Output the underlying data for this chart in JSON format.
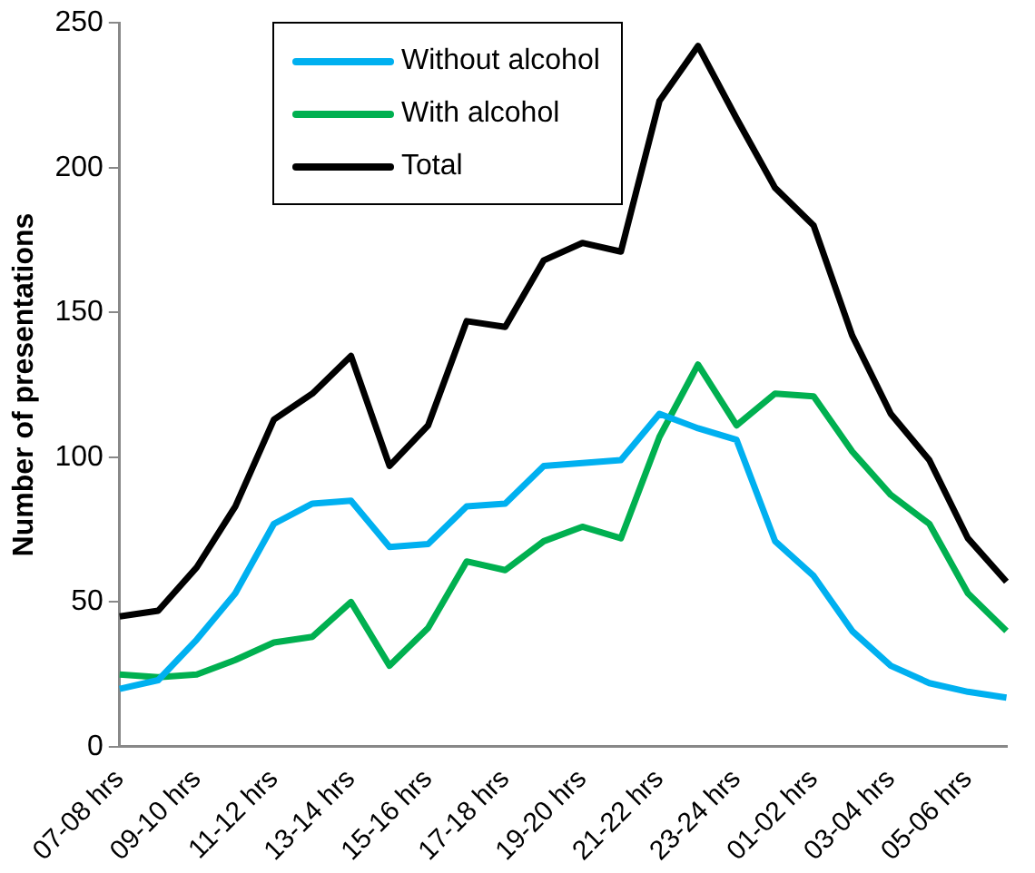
{
  "chart_data": {
    "type": "line",
    "ylabel": "Number of presentations",
    "categories": [
      "07-08 hrs",
      null,
      "09-10 hrs",
      null,
      "11-12 hrs",
      null,
      "13-14 hrs",
      null,
      "15-16 hrs",
      null,
      "17-18 hrs",
      null,
      "19-20 hrs",
      null,
      "21-22 hrs",
      null,
      "23-24 hrs",
      null,
      "01-02 hrs",
      null,
      "03-04 hrs",
      null,
      "05-06 hrs",
      null
    ],
    "series": [
      {
        "name": "Without alcohol",
        "color": "#00b0f0",
        "values": [
          20,
          23,
          37,
          53,
          77,
          84,
          85,
          69,
          70,
          83,
          84,
          97,
          98,
          99,
          115,
          110,
          106,
          71,
          59,
          40,
          28,
          22,
          19,
          17
        ]
      },
      {
        "name": "With alcohol",
        "color": "#00b050",
        "values": [
          25,
          24,
          25,
          30,
          36,
          38,
          50,
          28,
          41,
          64,
          61,
          71,
          76,
          72,
          107,
          132,
          111,
          122,
          121,
          102,
          87,
          77,
          53,
          40
        ]
      },
      {
        "name": "Total",
        "color": "#000000",
        "values": [
          45,
          47,
          62,
          83,
          113,
          122,
          135,
          97,
          111,
          147,
          145,
          168,
          174,
          171,
          223,
          242,
          217,
          193,
          180,
          142,
          115,
          99,
          72,
          57
        ]
      }
    ],
    "ylim": [
      0,
      250
    ],
    "yticks": [
      0,
      50,
      100,
      150,
      200,
      250
    ],
    "grid": false,
    "legend": "top left",
    "marker": "none",
    "line_style": "solid"
  }
}
